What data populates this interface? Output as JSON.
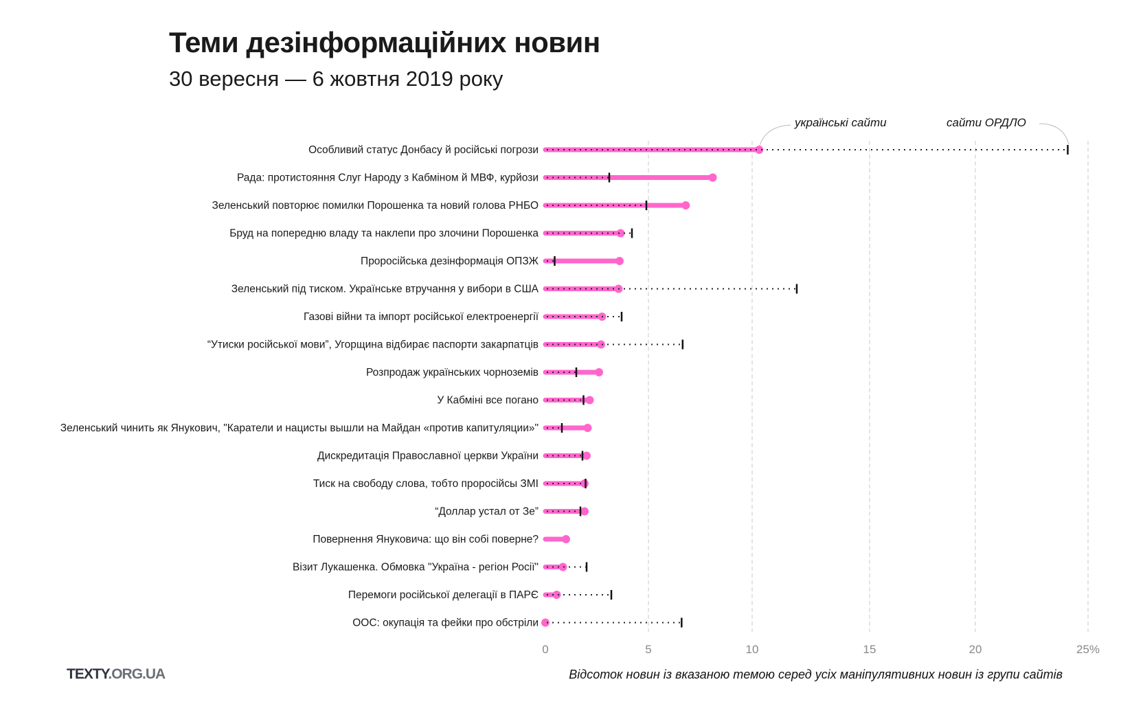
{
  "header": {
    "title": "Теми дезінформаційних новин",
    "subtitle": "30 вересня — 6  жовтня 2019 року"
  },
  "footer": {
    "logo_main": "TEXTY",
    "logo_suffix": ".ORG.UA"
  },
  "colors": {
    "ukrainian_sites": "#ff66cc",
    "ordlo_sites": "#111111",
    "grid": "#c8c8c8"
  },
  "chart_data": {
    "type": "dumbbell",
    "title": "Теми дезінформаційних новин",
    "xlabel": "Відсоток новин із вказаною темою серед усіх маніпулятивних новин із групи сайтів",
    "xlim": [
      0,
      25
    ],
    "x_ticks": [
      0,
      5,
      10,
      15,
      20,
      25
    ],
    "x_tick_labels": [
      "0",
      "5",
      "10",
      "15",
      "20",
      "25%"
    ],
    "grid": "vertical dashed",
    "series_labels": {
      "ukrainian": "українські сайти",
      "ordlo": "сайти ОРДЛО"
    },
    "categories": [
      "Особливий статус Донбасу й російські погрози",
      "Рада: протистояння Слуг Народу з Кабміном й МВФ, курйози",
      "Зеленський повторює помилки Порошенка та новий голова РНБО",
      "Бруд на попередню владу та наклепи про злочини Порошенка",
      "Проросійська дезінформація ОПЗЖ",
      "Зеленський під тиском. Українське втручання у вибори в США",
      "Газові війни та імпорт російської електроенергії",
      "“Утиски російської мови”, Угорщина відбирає паспорти закарпатців",
      "Розпродаж українських чорноземів",
      "У Кабміні все погано",
      "Зеленський чинить як Янукович, \"Каратели и нацисты вышли на Майдан «против капитуляции»\"",
      "Дискредитація Православної церкви України",
      "Тиск на свободу слова, тобто проросійсы ЗМІ",
      "“Доллар устал от Зе”",
      "Повернення Януковича: що він собі поверне?",
      "Візит Лукашенка. Обмовка \"Україна - регіон Росії\"",
      "Перемоги російської делегації в ПАРЄ",
      "ООС: окупація та фейки про обстріли"
    ],
    "series": [
      {
        "name": "українські сайти",
        "values": [
          10.3,
          8.1,
          6.8,
          3.65,
          3.6,
          3.55,
          2.75,
          2.7,
          2.6,
          2.15,
          2.05,
          2.0,
          1.9,
          1.9,
          1.0,
          0.85,
          0.55,
          0.0
        ]
      },
      {
        "name": "сайти ОРДЛО",
        "values": [
          24.1,
          3.1,
          4.9,
          4.2,
          0.45,
          11.9,
          3.7,
          6.65,
          1.5,
          1.85,
          0.8,
          1.8,
          1.95,
          1.7,
          null,
          2.0,
          3.2,
          6.6
        ]
      }
    ]
  }
}
